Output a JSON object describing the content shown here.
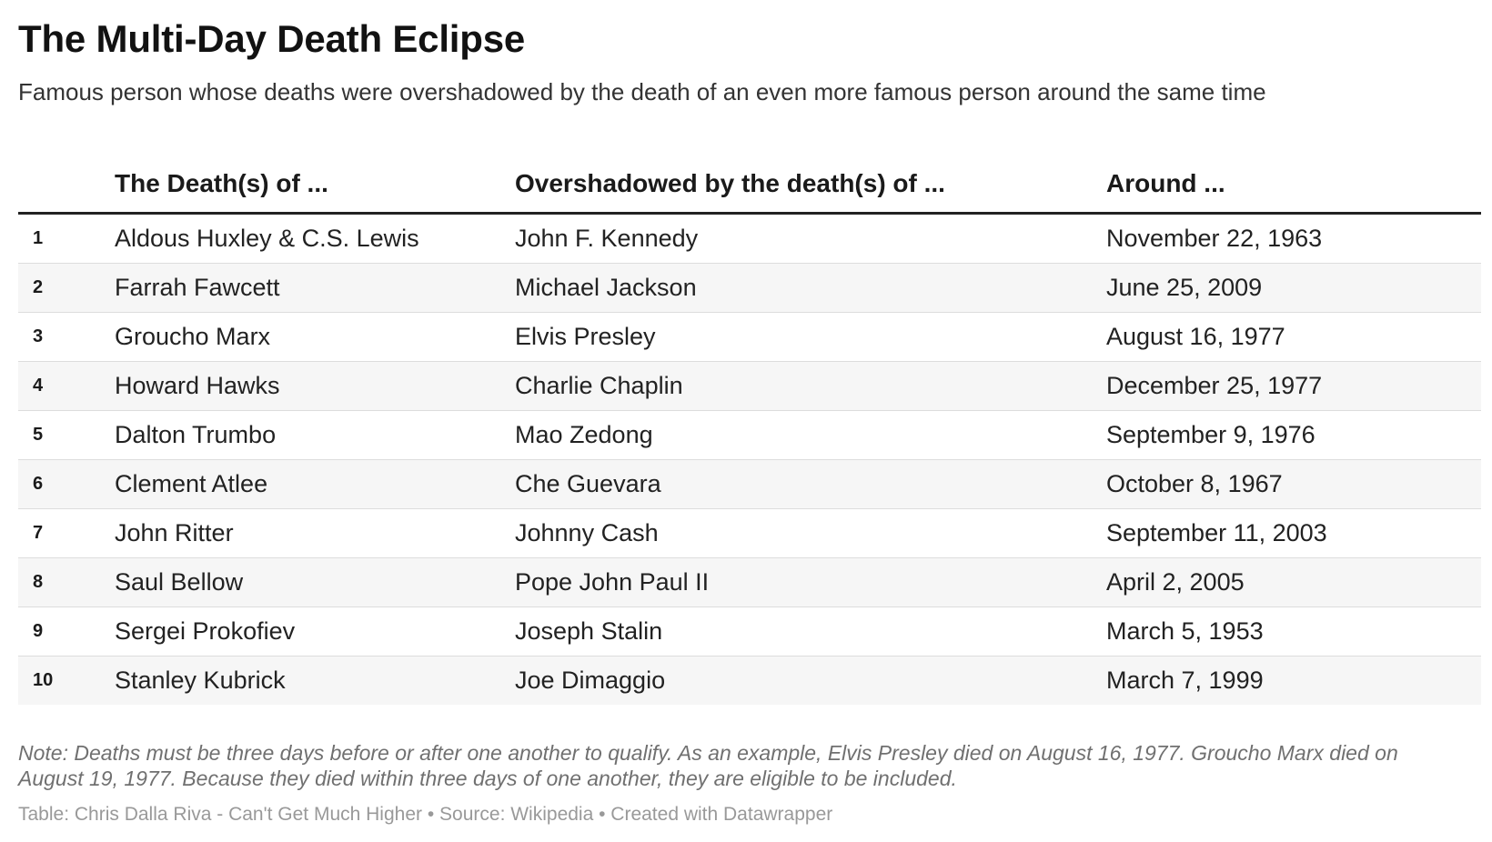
{
  "header": {
    "title": "The Multi-Day Death Eclipse",
    "subtitle": "Famous person whose deaths were overshadowed by the death of an even more famous person around the same time"
  },
  "chart_data": {
    "type": "table",
    "columns": [
      "",
      "The Death(s) of ...",
      "Overshadowed by the death(s) of ...",
      "Around ..."
    ],
    "rows": [
      {
        "rank": "1",
        "death_of": "Aldous Huxley & C.S. Lewis",
        "overshadowed_by": "John F. Kennedy",
        "around": "November 22, 1963"
      },
      {
        "rank": "2",
        "death_of": "Farrah Fawcett",
        "overshadowed_by": "Michael Jackson",
        "around": "June 25, 2009"
      },
      {
        "rank": "3",
        "death_of": "Groucho Marx",
        "overshadowed_by": "Elvis Presley",
        "around": "August 16, 1977"
      },
      {
        "rank": "4",
        "death_of": "Howard Hawks",
        "overshadowed_by": "Charlie Chaplin",
        "around": "December 25, 1977"
      },
      {
        "rank": "5",
        "death_of": "Dalton Trumbo",
        "overshadowed_by": "Mao Zedong",
        "around": "September 9, 1976"
      },
      {
        "rank": "6",
        "death_of": "Clement Atlee",
        "overshadowed_by": "Che Guevara",
        "around": "October 8, 1967"
      },
      {
        "rank": "7",
        "death_of": "John Ritter",
        "overshadowed_by": "Johnny Cash",
        "around": "September 11, 2003"
      },
      {
        "rank": "8",
        "death_of": "Saul Bellow",
        "overshadowed_by": "Pope John Paul II",
        "around": "April 2, 2005"
      },
      {
        "rank": "9",
        "death_of": "Sergei Prokofiev",
        "overshadowed_by": "Joseph Stalin",
        "around": "March 5, 1953"
      },
      {
        "rank": "10",
        "death_of": "Stanley Kubrick",
        "overshadowed_by": "Joe Dimaggio",
        "around": "March 7, 1999"
      }
    ]
  },
  "footer": {
    "note": "Note: Deaths must be three days before or after one another to qualify. As an example, Elvis Presley died on August 16, 1977. Groucho Marx died on August 19, 1977. Because they died within three days of one another, they are eligible to be included.",
    "credits": "Table: Chris Dalla Riva - Can't Get Much Higher • Source: Wikipedia • Created with Datawrapper"
  },
  "colors": {
    "text": "#1d1d1d",
    "header_rule": "#222222",
    "zebra": "#f6f6f6",
    "row_rule": "#dddddd",
    "note": "#707070",
    "credits": "#999999"
  }
}
